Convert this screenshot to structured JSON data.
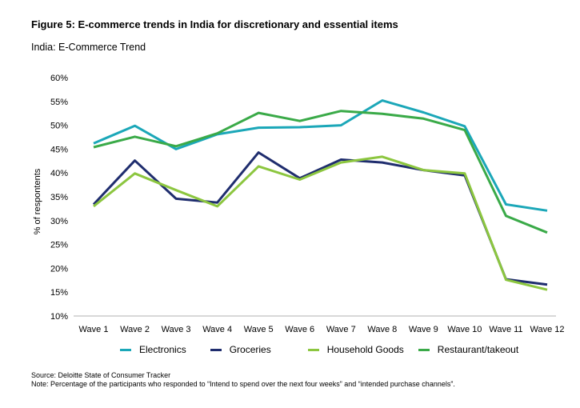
{
  "figure": {
    "title": "Figure 5: E-commerce trends in India for discretionary and essential items",
    "subtitle": "India: E-Commerce Trend",
    "source": "Source: Deloitte State of Consumer Tracker",
    "note": "Note: Percentage of the participants who responded to “Intend to spend over the next four weeks” and “intended purchase channels”."
  },
  "chart_data": {
    "type": "line",
    "title": "India: E-Commerce Trend",
    "xlabel": "",
    "ylabel": "% of respontents",
    "ylim": [
      10,
      60
    ],
    "y_ticks": [
      "10%",
      "15%",
      "20%",
      "25%",
      "30%",
      "35%",
      "40%",
      "45%",
      "50%",
      "55%",
      "60%"
    ],
    "grid": false,
    "legend_position": "bottom",
    "categories": [
      "Wave 1",
      "Wave 2",
      "Wave 3",
      "Wave 4",
      "Wave 5",
      "Wave 6",
      "Wave 7",
      "Wave 8",
      "Wave 9",
      "Wave 10",
      "Wave 11",
      "Wave 12"
    ],
    "series": [
      {
        "name": "Electronics",
        "color": "#1ba7b8",
        "values": [
          46.2,
          49.9,
          45.0,
          48.1,
          49.5,
          49.6,
          50.0,
          55.2,
          52.7,
          49.8,
          33.4,
          32.1
        ]
      },
      {
        "name": "Groceries",
        "color": "#1f2d6e",
        "values": [
          33.4,
          42.6,
          34.6,
          33.8,
          44.3,
          38.9,
          42.8,
          42.2,
          40.6,
          39.5,
          17.7,
          16.6
        ]
      },
      {
        "name": "Household Goods",
        "color": "#8cc63f",
        "values": [
          33.0,
          39.9,
          36.4,
          33.0,
          41.4,
          38.6,
          42.2,
          43.4,
          40.6,
          39.9,
          17.6,
          15.5
        ]
      },
      {
        "name": "Restaurant/takeout",
        "color": "#3aaa48",
        "values": [
          45.4,
          47.6,
          45.6,
          48.3,
          52.6,
          50.9,
          53.0,
          52.4,
          51.4,
          49.0,
          31.0,
          27.5
        ]
      }
    ]
  }
}
